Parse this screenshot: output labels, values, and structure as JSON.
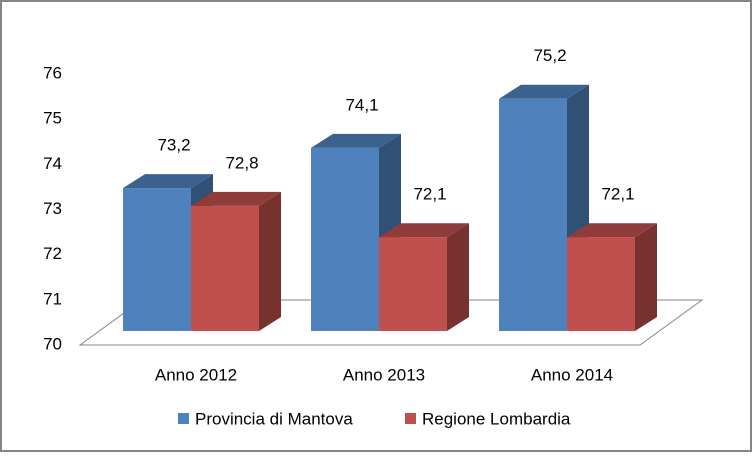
{
  "chart_data": {
    "type": "bar3d",
    "categories": [
      "Anno 2012",
      "Anno 2013",
      "Anno 2014"
    ],
    "series": [
      {
        "name": "Provincia di Mantova",
        "color": "#4f81bd",
        "values": [
          73.2,
          74.1,
          75.2
        ],
        "value_labels": [
          "73,2",
          "74,1",
          "75,2"
        ]
      },
      {
        "name": "Regione Lombardia",
        "color": "#c0504d",
        "values": [
          72.8,
          72.1,
          72.1
        ],
        "value_labels": [
          "72,8",
          "72,1",
          "72,1"
        ]
      }
    ],
    "ylim": [
      70,
      76
    ],
    "yticks": [
      70,
      71,
      72,
      73,
      74,
      75,
      76
    ],
    "legend": "bottom"
  }
}
